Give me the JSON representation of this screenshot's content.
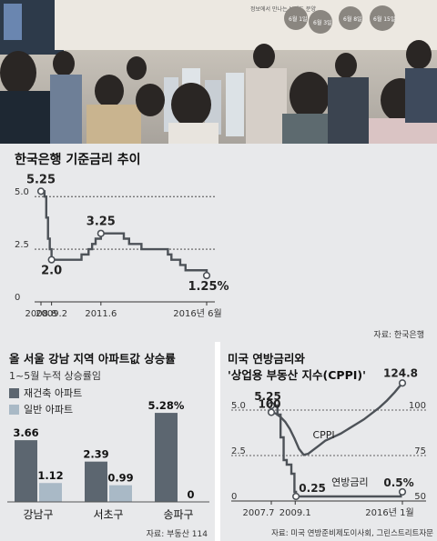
{
  "photo": {
    "alt": "crowd viewing an apartment model in a sales office",
    "banner": "정보에서 만나는 브랜드 분양",
    "badges": [
      "6월 1일",
      "6월 3일",
      "6월 8일",
      "6월 15일"
    ]
  },
  "colors": {
    "panel": "#e8e9eb",
    "line": "#4d5258",
    "marker_fill": "#ffffff",
    "bar_rebuild": "#5c6670",
    "bar_general": "#a9b9c6"
  },
  "chart_data": [
    {
      "type": "line",
      "title": "한국은행 기준금리 추이",
      "source": "자료: 한국은행",
      "x": [
        "2008.8",
        "2008.10",
        "2008.11",
        "2008.12",
        "2009.1",
        "2009.2",
        "2009.5",
        "2009.8",
        "2009.11",
        "2010.2",
        "2010.7",
        "2010.11",
        "2011.1",
        "2011.3",
        "2011.6",
        "2011.9",
        "2012.1",
        "2012.4",
        "2012.7",
        "2012.10",
        "2013.1",
        "2013.5",
        "2014.1",
        "2014.8",
        "2014.10",
        "2015.3",
        "2015.6",
        "2016.1",
        "2016.6"
      ],
      "values": [
        5.25,
        5.0,
        4.0,
        3.0,
        2.5,
        2.0,
        2.0,
        2.0,
        2.0,
        2.0,
        2.25,
        2.5,
        2.75,
        3.0,
        3.25,
        3.25,
        3.25,
        3.25,
        3.0,
        2.75,
        2.75,
        2.5,
        2.5,
        2.25,
        2.0,
        1.75,
        1.5,
        1.5,
        1.25
      ],
      "x_ticks": [
        "2008.8",
        "2009.2",
        "2011.6",
        "2016년 6월"
      ],
      "y_ticks": [
        "0",
        "2.5",
        "5.0"
      ],
      "ylim": [
        0,
        6
      ],
      "labels": [
        {
          "x": "2008.8",
          "y": 5.25,
          "text": "5.25"
        },
        {
          "x": "2009.2",
          "y": 2.0,
          "text": "2.0"
        },
        {
          "x": "2011.6",
          "y": 3.25,
          "text": "3.25"
        },
        {
          "x": "2016.6",
          "y": 1.25,
          "text": "1.25%"
        }
      ]
    },
    {
      "type": "bar",
      "title": "올 서울 강남 지역 아파트값 상승률",
      "subtitle": "1~5월 누적 상승률임",
      "source": "자료: 부동산 114",
      "categories": [
        "강남구",
        "서초구",
        "송파구"
      ],
      "series": [
        {
          "name": "재건축 아파트",
          "values": [
            3.66,
            2.39,
            5.28
          ]
        },
        {
          "name": "일반 아파트",
          "values": [
            1.12,
            0.99,
            0
          ]
        }
      ],
      "value_labels": [
        [
          "3.66",
          "2.39",
          "5.28%"
        ],
        [
          "1.12",
          "0.99",
          "0"
        ]
      ],
      "ylim": [
        0,
        5.5
      ]
    },
    {
      "type": "line",
      "title_line1": "미국 연방금리와",
      "title_line2": "'상업용 부동산 지수(CPPI)'",
      "source": "자료: 미국 연방준비제도이사회, 그린스트리트자문",
      "x_ticks": [
        "2007.7",
        "2009.1",
        "2016년 1월"
      ],
      "left_ticks": [
        "0",
        "2.5",
        "5.0"
      ],
      "right_ticks": [
        "50",
        "75",
        "100"
      ],
      "series": [
        {
          "name": "CPPI",
          "axis": "right",
          "x": [
            2007.5,
            2007.8,
            2008.1,
            2008.4,
            2008.7,
            2009.0,
            2009.3,
            2009.6,
            2009.9,
            2010.2,
            2010.6,
            2011.0,
            2011.5,
            2012.0,
            2012.5,
            2013.0,
            2013.5,
            2014.0,
            2014.5,
            2015.0,
            2015.5,
            2016.0
          ],
          "values": [
            100,
            99,
            96,
            92,
            86,
            78,
            69,
            64,
            65,
            68,
            72,
            76,
            79,
            82,
            86,
            90,
            94,
            99,
            104,
            110,
            117,
            124.8
          ]
        },
        {
          "name": "연방금리",
          "axis": "left",
          "x": [
            2007.5,
            2007.7,
            2007.9,
            2008.1,
            2008.3,
            2008.5,
            2008.8,
            2009.0,
            2009.1,
            2010,
            2011,
            2012,
            2013,
            2014,
            2015,
            2015.9,
            2016.0
          ],
          "values": [
            5.25,
            5.25,
            4.75,
            3.5,
            2.25,
            2.0,
            1.5,
            0.5,
            0.25,
            0.25,
            0.25,
            0.25,
            0.25,
            0.25,
            0.25,
            0.5,
            0.5
          ]
        }
      ],
      "labels": [
        {
          "series": "CPPI",
          "text": "100"
        },
        {
          "series": "CPPI",
          "text": "124.8"
        },
        {
          "series": "CPPI",
          "text": "CPPI"
        },
        {
          "series": "연방금리",
          "text": "5.25"
        },
        {
          "series": "연방금리",
          "text": "0.25"
        },
        {
          "series": "연방금리",
          "text": "0.5%"
        },
        {
          "series": "연방금리",
          "text": "연방금리"
        }
      ],
      "left_ylim": [
        0,
        6
      ],
      "right_ylim": [
        25,
        125
      ]
    }
  ]
}
